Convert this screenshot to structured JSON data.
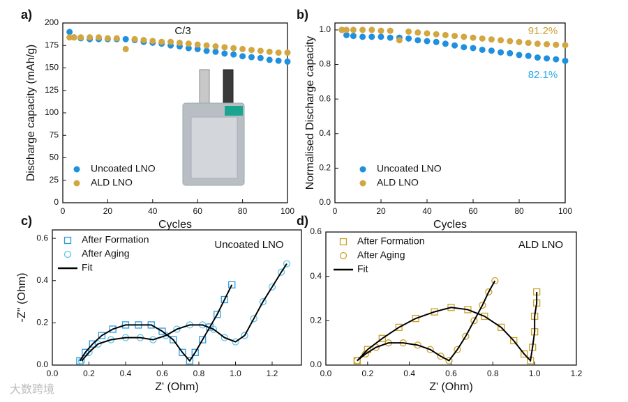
{
  "chart_data": [
    {
      "type": "scatter",
      "panel": "a)",
      "xlabel": "Cycles",
      "ylabel": "Discharge capacity (mAh/g)",
      "annotations": [
        "C/3"
      ],
      "annotation_colors": [
        "#111111"
      ],
      "xlim": [
        0,
        100
      ],
      "xticks": [
        0,
        20,
        40,
        60,
        80,
        100
      ],
      "ylim": [
        0,
        200
      ],
      "yticks": [
        0,
        25,
        50,
        75,
        100,
        125,
        150,
        175,
        200
      ],
      "legend": "lower left",
      "series": [
        {
          "name": "Uncoated LNO",
          "color": "#1f8fe0",
          "marker": "circle",
          "filled": true,
          "x": [
            3,
            5,
            8,
            12,
            16,
            20,
            24,
            28,
            32,
            36,
            40,
            44,
            48,
            52,
            56,
            60,
            64,
            68,
            72,
            76,
            80,
            84,
            88,
            92,
            96,
            100
          ],
          "values": [
            190,
            184,
            183,
            182,
            182,
            182,
            182,
            182,
            181,
            179,
            178,
            177,
            175,
            174,
            172,
            171,
            169,
            168,
            166,
            165,
            163,
            162,
            161,
            159,
            158,
            157
          ]
        },
        {
          "name": "ALD LNO",
          "color": "#d2a640",
          "marker": "circle",
          "filled": true,
          "x": [
            3,
            5,
            8,
            12,
            16,
            20,
            24,
            28,
            32,
            36,
            40,
            44,
            48,
            52,
            56,
            60,
            64,
            68,
            72,
            76,
            80,
            84,
            88,
            92,
            96,
            100
          ],
          "values": [
            184,
            184,
            184,
            184,
            184,
            183,
            183,
            171,
            182,
            181,
            180,
            179,
            179,
            178,
            177,
            176,
            175,
            174,
            173,
            172,
            171,
            170,
            169,
            168,
            167,
            167
          ]
        }
      ]
    },
    {
      "type": "scatter",
      "panel": "b)",
      "xlabel": "Cycles",
      "ylabel": "Normalised Discharge capacity",
      "annotations": [
        "91.2%",
        "82.1%"
      ],
      "annotation_colors": [
        "#c9a030",
        "#2aa6e6"
      ],
      "xlim": [
        0,
        100
      ],
      "xticks": [
        0,
        20,
        40,
        60,
        80,
        100
      ],
      "ylim": [
        0,
        1.04
      ],
      "yticks": [
        {
          "value": 0,
          "label": "0.0"
        },
        0.2,
        0.4,
        0.6,
        0.8,
        {
          "value": 1,
          "label": "1.0"
        }
      ],
      "legend": "lower left",
      "series": [
        {
          "name": "Uncoated LNO",
          "color": "#1f8fe0",
          "marker": "circle",
          "filled": true,
          "x": [
            3,
            5,
            8,
            12,
            16,
            20,
            24,
            28,
            32,
            36,
            40,
            44,
            48,
            52,
            56,
            60,
            64,
            68,
            72,
            76,
            80,
            84,
            88,
            92,
            96,
            100
          ],
          "values": [
            1.0,
            0.97,
            0.965,
            0.96,
            0.96,
            0.96,
            0.955,
            0.955,
            0.95,
            0.94,
            0.935,
            0.93,
            0.92,
            0.91,
            0.9,
            0.895,
            0.885,
            0.88,
            0.87,
            0.865,
            0.855,
            0.85,
            0.84,
            0.835,
            0.83,
            0.821
          ]
        },
        {
          "name": "ALD LNO",
          "color": "#d2a640",
          "marker": "circle",
          "filled": true,
          "x": [
            3,
            5,
            8,
            12,
            16,
            20,
            24,
            28,
            32,
            36,
            40,
            44,
            48,
            52,
            56,
            60,
            64,
            68,
            72,
            76,
            80,
            84,
            88,
            92,
            96,
            100
          ],
          "values": [
            1.0,
            1.0,
            1.0,
            1.0,
            1.0,
            0.995,
            0.995,
            0.94,
            0.99,
            0.985,
            0.98,
            0.975,
            0.97,
            0.965,
            0.96,
            0.955,
            0.95,
            0.945,
            0.94,
            0.935,
            0.93,
            0.925,
            0.92,
            0.917,
            0.914,
            0.912
          ]
        }
      ]
    },
    {
      "type": "scatter",
      "panel": "c)",
      "xlabel": "Z' (Ohm)",
      "ylabel": "-Z'' (Ohm)",
      "annotations": [
        "Uncoated LNO"
      ],
      "annotation_colors": [
        "#111111"
      ],
      "xlim": [
        0,
        1.36
      ],
      "xticks": [
        {
          "value": 0,
          "label": "0.0"
        },
        0.2,
        0.4,
        0.6,
        0.8,
        {
          "value": 1,
          "label": "1.0"
        },
        1.2
      ],
      "ylim": [
        0,
        0.64
      ],
      "yticks": [
        {
          "value": 0,
          "label": "0.0"
        },
        0.2,
        0.4,
        0.6
      ],
      "legend": "upper left",
      "series": [
        {
          "name": "After Formation",
          "color": "#2a9be0",
          "marker": "square",
          "filled": false,
          "x": [
            0.15,
            0.18,
            0.22,
            0.27,
            0.33,
            0.4,
            0.47,
            0.54,
            0.6,
            0.66,
            0.71,
            0.75,
            0.78,
            0.82,
            0.86,
            0.9,
            0.94,
            0.98
          ],
          "values": [
            0.02,
            0.06,
            0.1,
            0.14,
            0.17,
            0.19,
            0.19,
            0.19,
            0.16,
            0.12,
            0.06,
            0.02,
            0.06,
            0.12,
            0.18,
            0.24,
            0.31,
            0.38
          ]
        },
        {
          "name": "After Aging",
          "color": "#5cc4ea",
          "marker": "circle",
          "filled": false,
          "x": [
            0.16,
            0.2,
            0.25,
            0.32,
            0.4,
            0.48,
            0.55,
            0.62,
            0.68,
            0.75,
            0.82,
            0.88,
            0.94,
            1.0,
            1.05,
            1.1,
            1.15,
            1.2,
            1.25,
            1.28
          ],
          "values": [
            0.02,
            0.06,
            0.1,
            0.12,
            0.13,
            0.13,
            0.12,
            0.14,
            0.17,
            0.19,
            0.19,
            0.17,
            0.13,
            0.11,
            0.14,
            0.22,
            0.3,
            0.37,
            0.44,
            0.48
          ]
        },
        {
          "name": "Fit",
          "color": "#000000",
          "marker": "line",
          "filled": false,
          "x": [
            0.15,
            0.18,
            0.22,
            0.27,
            0.33,
            0.4,
            0.47,
            0.54,
            0.6,
            0.66,
            0.71,
            0.75,
            0.78,
            0.82,
            0.86,
            0.9,
            0.94,
            0.98,
            null,
            0.16,
            0.2,
            0.25,
            0.32,
            0.4,
            0.48,
            0.55,
            0.62,
            0.68,
            0.75,
            0.82,
            0.88,
            0.94,
            1.0,
            1.05,
            1.1,
            1.15,
            1.2,
            1.25,
            1.28
          ],
          "values": [
            0.02,
            0.06,
            0.1,
            0.14,
            0.17,
            0.19,
            0.19,
            0.19,
            0.16,
            0.12,
            0.06,
            0.02,
            0.06,
            0.12,
            0.18,
            0.24,
            0.31,
            0.38,
            null,
            0.02,
            0.06,
            0.1,
            0.12,
            0.13,
            0.13,
            0.12,
            0.14,
            0.17,
            0.19,
            0.19,
            0.17,
            0.13,
            0.11,
            0.14,
            0.22,
            0.3,
            0.37,
            0.44,
            0.48
          ]
        }
      ]
    },
    {
      "type": "scatter",
      "panel": "d)",
      "xlabel": "Z' (Ohm)",
      "annotations": [
        "ALD LNO"
      ],
      "annotation_colors": [
        "#111111"
      ],
      "xlim": [
        0,
        1.2
      ],
      "xticks": [
        {
          "value": 0,
          "label": "0.0"
        },
        0.2,
        0.4,
        0.6,
        0.8,
        {
          "value": 1,
          "label": "1.0"
        },
        1.2
      ],
      "ylim": [
        0,
        0.6
      ],
      "yticks": [
        {
          "value": 0,
          "label": "0.0"
        },
        0.2,
        0.4,
        0.6
      ],
      "legend": "upper left",
      "series": [
        {
          "name": "After Formation",
          "color": "#c9a227",
          "marker": "square",
          "filled": false,
          "x": [
            0.15,
            0.2,
            0.27,
            0.35,
            0.43,
            0.52,
            0.6,
            0.68,
            0.76,
            0.84,
            0.9,
            0.95,
            0.98,
            0.99,
            1.0,
            1.0,
            1.01,
            1.01
          ],
          "values": [
            0.02,
            0.07,
            0.12,
            0.17,
            0.21,
            0.24,
            0.26,
            0.25,
            0.22,
            0.17,
            0.11,
            0.05,
            0.02,
            0.08,
            0.15,
            0.22,
            0.28,
            0.33
          ]
        },
        {
          "name": "After Aging",
          "color": "#c9a227",
          "marker": "circle",
          "filled": false,
          "x": [
            0.15,
            0.19,
            0.24,
            0.3,
            0.37,
            0.44,
            0.5,
            0.55,
            0.59,
            0.63,
            0.67,
            0.71,
            0.75,
            0.78,
            0.81
          ],
          "values": [
            0.02,
            0.05,
            0.08,
            0.1,
            0.1,
            0.09,
            0.07,
            0.04,
            0.02,
            0.07,
            0.13,
            0.2,
            0.27,
            0.33,
            0.38
          ]
        },
        {
          "name": "Fit",
          "color": "#000000",
          "marker": "line",
          "filled": false,
          "x": [
            0.15,
            0.2,
            0.27,
            0.35,
            0.43,
            0.52,
            0.6,
            0.68,
            0.76,
            0.84,
            0.9,
            0.95,
            0.98,
            0.99,
            1.0,
            1.0,
            1.01,
            1.01,
            null,
            0.15,
            0.19,
            0.24,
            0.3,
            0.37,
            0.44,
            0.5,
            0.55,
            0.59,
            0.63,
            0.67,
            0.71,
            0.75,
            0.78,
            0.81
          ],
          "values": [
            0.02,
            0.07,
            0.12,
            0.17,
            0.21,
            0.24,
            0.26,
            0.25,
            0.22,
            0.17,
            0.11,
            0.05,
            0.02,
            0.08,
            0.15,
            0.22,
            0.28,
            0.33,
            null,
            0.02,
            0.05,
            0.08,
            0.1,
            0.1,
            0.09,
            0.07,
            0.04,
            0.02,
            0.07,
            0.13,
            0.2,
            0.27,
            0.33,
            0.38
          ]
        }
      ]
    }
  ],
  "watermark": "大数跨境"
}
